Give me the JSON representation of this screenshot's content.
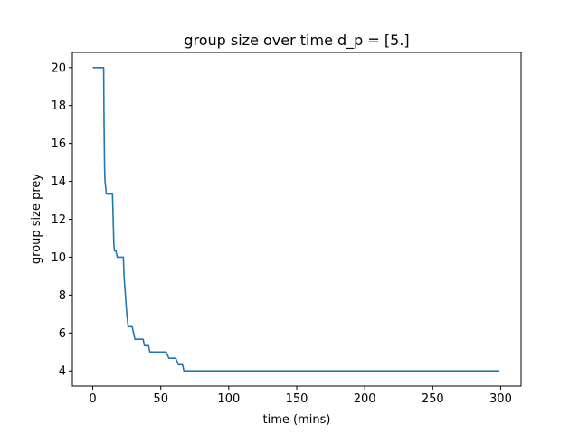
{
  "chart_data": {
    "type": "line",
    "title": "group size over time d_p = [5.]",
    "xlabel": "time (mins)",
    "ylabel": "group size prey",
    "xlim": [
      -15,
      315
    ],
    "ylim": [
      3.2,
      20.8
    ],
    "xticks": [
      0,
      50,
      100,
      150,
      200,
      250,
      300
    ],
    "yticks": [
      4,
      6,
      8,
      10,
      12,
      14,
      16,
      18,
      20
    ],
    "grid": false,
    "line_color": "#1f77b4",
    "series": [
      {
        "x": [
          0,
          8,
          8.3,
          8.7,
          9,
          10,
          14.5,
          15,
          15.5,
          16,
          17,
          18,
          22.5,
          23,
          24,
          25,
          26,
          28,
          29,
          30,
          31,
          32,
          33,
          37,
          38,
          41,
          42,
          44.5,
          45,
          54,
          56,
          61,
          63,
          66,
          67,
          80,
          299
        ],
        "y": [
          20,
          20,
          17,
          14.67,
          14,
          13.33,
          13.33,
          12,
          10.67,
          10.33,
          10.33,
          10,
          10,
          9,
          8,
          7,
          6.33,
          6.33,
          6.33,
          6,
          5.67,
          5.67,
          5.67,
          5.67,
          5.33,
          5.33,
          5,
          5,
          5,
          5,
          4.67,
          4.67,
          4.33,
          4.33,
          4,
          4,
          4
        ]
      }
    ]
  }
}
